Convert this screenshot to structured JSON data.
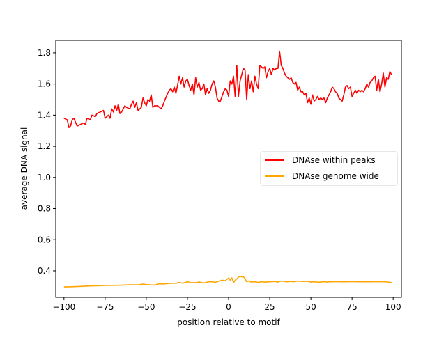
{
  "chart_data": {
    "type": "line",
    "title": "",
    "xlabel": "position relative to motif",
    "ylabel": "average DNA signal",
    "xlim": [
      -105,
      105
    ],
    "ylim": [
      0.23,
      1.88
    ],
    "xticks": [
      -100,
      -75,
      -50,
      -25,
      0,
      25,
      50,
      75,
      100
    ],
    "xtick_labels": [
      "−100",
      "−75",
      "−50",
      "−25",
      "0",
      "25",
      "50",
      "75",
      "100"
    ],
    "yticks": [
      0.4,
      0.6,
      0.8,
      1.0,
      1.2,
      1.4,
      1.6,
      1.8
    ],
    "ytick_labels": [
      "0.4",
      "0.6",
      "0.8",
      "1.0",
      "1.2",
      "1.4",
      "1.6",
      "1.8"
    ],
    "grid": false,
    "legend_position": "center-right",
    "series": [
      {
        "name": "DNAse within peaks",
        "color": "#ff0000",
        "points": [
          [
            -100,
            1.38
          ],
          [
            -98,
            1.37
          ],
          [
            -97,
            1.32
          ],
          [
            -96,
            1.33
          ],
          [
            -95,
            1.37
          ],
          [
            -94,
            1.38
          ],
          [
            -92,
            1.33
          ],
          [
            -90,
            1.34
          ],
          [
            -88,
            1.35
          ],
          [
            -87,
            1.34
          ],
          [
            -86,
            1.38
          ],
          [
            -84,
            1.37
          ],
          [
            -83,
            1.4
          ],
          [
            -81,
            1.39
          ],
          [
            -80,
            1.41
          ],
          [
            -78,
            1.42
          ],
          [
            -76,
            1.43
          ],
          [
            -75,
            1.38
          ],
          [
            -73,
            1.4
          ],
          [
            -72,
            1.38
          ],
          [
            -71,
            1.44
          ],
          [
            -70,
            1.42
          ],
          [
            -69,
            1.46
          ],
          [
            -68,
            1.43
          ],
          [
            -67,
            1.47
          ],
          [
            -66,
            1.41
          ],
          [
            -65,
            1.42
          ],
          [
            -63,
            1.46
          ],
          [
            -62,
            1.45
          ],
          [
            -60,
            1.44
          ],
          [
            -59,
            1.47
          ],
          [
            -58,
            1.49
          ],
          [
            -57,
            1.45
          ],
          [
            -56,
            1.48
          ],
          [
            -55,
            1.43
          ],
          [
            -53,
            1.45
          ],
          [
            -52,
            1.51
          ],
          [
            -51,
            1.48
          ],
          [
            -50,
            1.46
          ],
          [
            -49,
            1.5
          ],
          [
            -48,
            1.49
          ],
          [
            -47,
            1.53
          ],
          [
            -46,
            1.45
          ],
          [
            -45,
            1.46
          ],
          [
            -43,
            1.46
          ],
          [
            -42,
            1.45
          ],
          [
            -41,
            1.44
          ],
          [
            -40,
            1.46
          ],
          [
            -39,
            1.49
          ],
          [
            -37,
            1.54
          ],
          [
            -36,
            1.56
          ],
          [
            -35,
            1.57
          ],
          [
            -34,
            1.55
          ],
          [
            -33,
            1.58
          ],
          [
            -32,
            1.54
          ],
          [
            -31,
            1.59
          ],
          [
            -30,
            1.65
          ],
          [
            -29,
            1.6
          ],
          [
            -28,
            1.64
          ],
          [
            -27,
            1.58
          ],
          [
            -26,
            1.62
          ],
          [
            -25,
            1.63
          ],
          [
            -24,
            1.59
          ],
          [
            -23,
            1.56
          ],
          [
            -22,
            1.6
          ],
          [
            -21,
            1.53
          ],
          [
            -20,
            1.64
          ],
          [
            -19,
            1.58
          ],
          [
            -18,
            1.61
          ],
          [
            -17,
            1.56
          ],
          [
            -16,
            1.57
          ],
          [
            -15,
            1.6
          ],
          [
            -14,
            1.53
          ],
          [
            -13,
            1.57
          ],
          [
            -12,
            1.54
          ],
          [
            -11,
            1.56
          ],
          [
            -10,
            1.6
          ],
          [
            -9,
            1.62
          ],
          [
            -8,
            1.58
          ],
          [
            -7,
            1.51
          ],
          [
            -6,
            1.49
          ],
          [
            -5,
            1.49
          ],
          [
            -4,
            1.52
          ],
          [
            -3,
            1.55
          ],
          [
            -2,
            1.57
          ],
          [
            -1,
            1.56
          ],
          [
            0,
            1.52
          ],
          [
            1,
            1.62
          ],
          [
            2,
            1.6
          ],
          [
            3,
            1.65
          ],
          [
            4,
            1.52
          ],
          [
            5,
            1.72
          ],
          [
            6,
            1.52
          ],
          [
            7,
            1.62
          ],
          [
            8,
            1.66
          ],
          [
            9,
            1.7
          ],
          [
            10,
            1.69
          ],
          [
            11,
            1.5
          ],
          [
            12,
            1.66
          ],
          [
            13,
            1.57
          ],
          [
            14,
            1.62
          ],
          [
            15,
            1.55
          ],
          [
            16,
            1.65
          ],
          [
            17,
            1.6
          ],
          [
            18,
            1.57
          ],
          [
            19,
            1.72
          ],
          [
            20,
            1.71
          ],
          [
            21,
            1.7
          ],
          [
            22,
            1.71
          ],
          [
            23,
            1.64
          ],
          [
            24,
            1.68
          ],
          [
            25,
            1.7
          ],
          [
            26,
            1.66
          ],
          [
            27,
            1.7
          ],
          [
            28,
            1.69
          ],
          [
            29,
            1.7
          ],
          [
            30,
            1.7
          ],
          [
            31,
            1.81
          ],
          [
            32,
            1.72
          ],
          [
            33,
            1.7
          ],
          [
            34,
            1.67
          ],
          [
            35,
            1.65
          ],
          [
            36,
            1.64
          ],
          [
            37,
            1.63
          ],
          [
            38,
            1.64
          ],
          [
            39,
            1.61
          ],
          [
            40,
            1.6
          ],
          [
            41,
            1.61
          ],
          [
            42,
            1.56
          ],
          [
            43,
            1.58
          ],
          [
            44,
            1.55
          ],
          [
            45,
            1.55
          ],
          [
            46,
            1.53
          ],
          [
            47,
            1.54
          ],
          [
            48,
            1.48
          ],
          [
            49,
            1.51
          ],
          [
            50,
            1.47
          ],
          [
            51,
            1.53
          ],
          [
            52,
            1.49
          ],
          [
            53,
            1.5
          ],
          [
            54,
            1.52
          ],
          [
            55,
            1.5
          ],
          [
            56,
            1.51
          ],
          [
            57,
            1.5
          ],
          [
            58,
            1.51
          ],
          [
            59,
            1.48
          ],
          [
            60,
            1.51
          ],
          [
            61,
            1.53
          ],
          [
            62,
            1.55
          ],
          [
            63,
            1.58
          ],
          [
            64,
            1.57
          ],
          [
            65,
            1.55
          ],
          [
            66,
            1.54
          ],
          [
            67,
            1.51
          ],
          [
            68,
            1.5
          ],
          [
            69,
            1.49
          ],
          [
            70,
            1.53
          ],
          [
            71,
            1.58
          ],
          [
            72,
            1.59
          ],
          [
            73,
            1.57
          ],
          [
            74,
            1.58
          ],
          [
            75,
            1.52
          ],
          [
            76,
            1.54
          ],
          [
            77,
            1.56
          ],
          [
            78,
            1.54
          ],
          [
            79,
            1.56
          ],
          [
            80,
            1.55
          ],
          [
            81,
            1.56
          ],
          [
            82,
            1.55
          ],
          [
            83,
            1.57
          ],
          [
            84,
            1.6
          ],
          [
            85,
            1.58
          ],
          [
            86,
            1.61
          ],
          [
            87,
            1.62
          ],
          [
            88,
            1.64
          ],
          [
            89,
            1.65
          ],
          [
            90,
            1.56
          ],
          [
            91,
            1.63
          ],
          [
            92,
            1.55
          ],
          [
            93,
            1.6
          ],
          [
            94,
            1.67
          ],
          [
            95,
            1.58
          ],
          [
            96,
            1.64
          ],
          [
            97,
            1.63
          ],
          [
            98,
            1.68
          ],
          [
            99,
            1.66
          ]
        ]
      },
      {
        "name": "DNAse genome wide",
        "color": "#ffa500",
        "points": [
          [
            -100,
            0.297
          ],
          [
            -95,
            0.298
          ],
          [
            -90,
            0.3
          ],
          [
            -85,
            0.303
          ],
          [
            -80,
            0.304
          ],
          [
            -75,
            0.306
          ],
          [
            -70,
            0.307
          ],
          [
            -65,
            0.308
          ],
          [
            -60,
            0.31
          ],
          [
            -55,
            0.31
          ],
          [
            -52,
            0.315
          ],
          [
            -50,
            0.312
          ],
          [
            -45,
            0.308
          ],
          [
            -42,
            0.317
          ],
          [
            -40,
            0.315
          ],
          [
            -35,
            0.32
          ],
          [
            -32,
            0.32
          ],
          [
            -30,
            0.326
          ],
          [
            -28,
            0.32
          ],
          [
            -25,
            0.33
          ],
          [
            -23,
            0.324
          ],
          [
            -20,
            0.324
          ],
          [
            -18,
            0.328
          ],
          [
            -15,
            0.322
          ],
          [
            -12,
            0.33
          ],
          [
            -10,
            0.33
          ],
          [
            -8,
            0.326
          ],
          [
            -6,
            0.334
          ],
          [
            -4,
            0.34
          ],
          [
            -2,
            0.337
          ],
          [
            0,
            0.355
          ],
          [
            1,
            0.34
          ],
          [
            2,
            0.355
          ],
          [
            3,
            0.325
          ],
          [
            4,
            0.34
          ],
          [
            5,
            0.348
          ],
          [
            6,
            0.36
          ],
          [
            7,
            0.365
          ],
          [
            8,
            0.362
          ],
          [
            9,
            0.362
          ],
          [
            10,
            0.35
          ],
          [
            11,
            0.33
          ],
          [
            12,
            0.335
          ],
          [
            14,
            0.328
          ],
          [
            16,
            0.33
          ],
          [
            18,
            0.326
          ],
          [
            20,
            0.33
          ],
          [
            22,
            0.328
          ],
          [
            25,
            0.33
          ],
          [
            28,
            0.332
          ],
          [
            30,
            0.328
          ],
          [
            32,
            0.335
          ],
          [
            35,
            0.33
          ],
          [
            38,
            0.332
          ],
          [
            40,
            0.33
          ],
          [
            42,
            0.335
          ],
          [
            45,
            0.332
          ],
          [
            48,
            0.333
          ],
          [
            50,
            0.328
          ],
          [
            52,
            0.33
          ],
          [
            55,
            0.327
          ],
          [
            58,
            0.33
          ],
          [
            60,
            0.328
          ],
          [
            62,
            0.33
          ],
          [
            65,
            0.331
          ],
          [
            70,
            0.33
          ],
          [
            75,
            0.331
          ],
          [
            80,
            0.33
          ],
          [
            85,
            0.33
          ],
          [
            90,
            0.331
          ],
          [
            95,
            0.33
          ],
          [
            99,
            0.325
          ]
        ]
      }
    ]
  }
}
